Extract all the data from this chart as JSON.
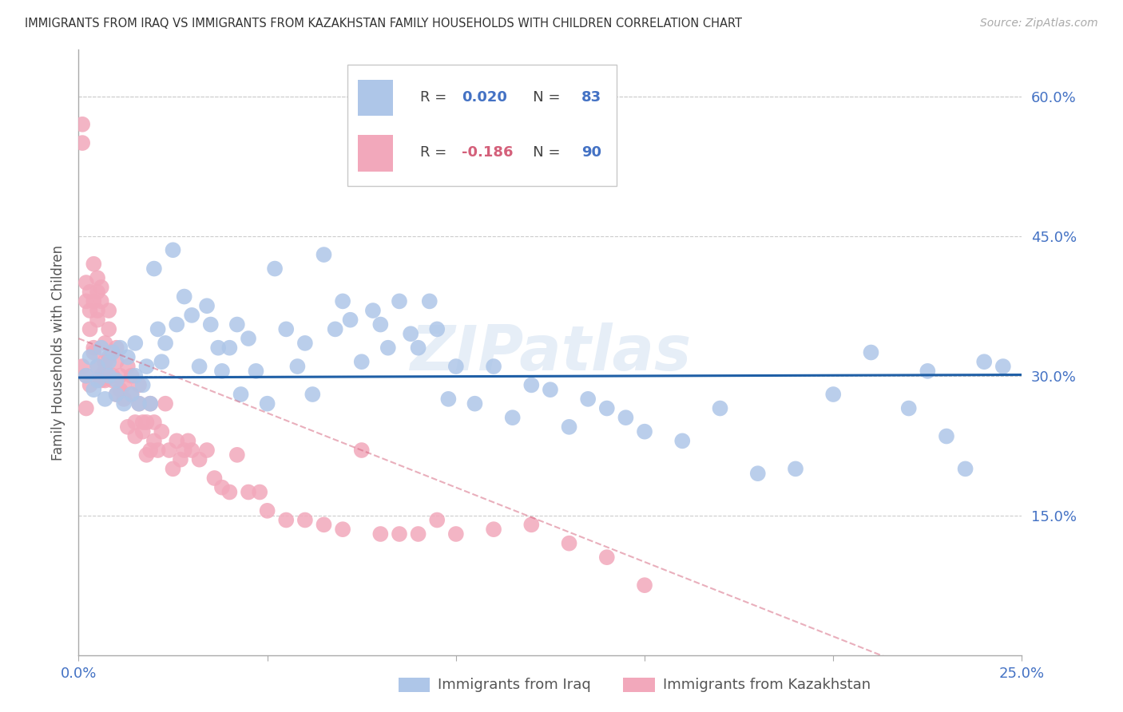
{
  "title": "IMMIGRANTS FROM IRAQ VS IMMIGRANTS FROM KAZAKHSTAN FAMILY HOUSEHOLDS WITH CHILDREN CORRELATION CHART",
  "source": "Source: ZipAtlas.com",
  "xlabel_legend1": "Immigrants from Iraq",
  "xlabel_legend2": "Immigrants from Kazakhstan",
  "ylabel": "Family Households with Children",
  "iraq_R": 0.02,
  "iraq_N": 83,
  "kaz_R": -0.186,
  "kaz_N": 90,
  "xlim": [
    0.0,
    0.25
  ],
  "ylim": [
    0.0,
    0.65
  ],
  "yticks": [
    0.0,
    0.15,
    0.3,
    0.45,
    0.6
  ],
  "ytick_labels": [
    "",
    "15.0%",
    "30.0%",
    "45.0%",
    "60.0%"
  ],
  "xticks": [
    0.0,
    0.05,
    0.1,
    0.15,
    0.2,
    0.25
  ],
  "xtick_labels": [
    "0.0%",
    "",
    "",
    "",
    "",
    "25.0%"
  ],
  "color_iraq": "#aec6e8",
  "color_kaz": "#f2a8bb",
  "line_color_iraq": "#1f5fa6",
  "line_color_kaz": "#d4607a",
  "watermark": "ZIPatlas",
  "background_color": "#ffffff",
  "iraq_scatter_x": [
    0.002,
    0.003,
    0.004,
    0.005,
    0.005,
    0.006,
    0.007,
    0.008,
    0.008,
    0.009,
    0.01,
    0.01,
    0.011,
    0.012,
    0.013,
    0.014,
    0.015,
    0.015,
    0.016,
    0.017,
    0.018,
    0.019,
    0.02,
    0.021,
    0.022,
    0.023,
    0.025,
    0.026,
    0.028,
    0.03,
    0.032,
    0.034,
    0.035,
    0.037,
    0.038,
    0.04,
    0.042,
    0.043,
    0.045,
    0.047,
    0.05,
    0.052,
    0.055,
    0.058,
    0.06,
    0.062,
    0.065,
    0.068,
    0.07,
    0.072,
    0.075,
    0.078,
    0.08,
    0.082,
    0.085,
    0.088,
    0.09,
    0.093,
    0.095,
    0.098,
    0.1,
    0.105,
    0.11,
    0.115,
    0.12,
    0.125,
    0.13,
    0.135,
    0.14,
    0.145,
    0.15,
    0.16,
    0.17,
    0.18,
    0.19,
    0.2,
    0.21,
    0.22,
    0.225,
    0.23,
    0.235,
    0.24,
    0.245
  ],
  "iraq_scatter_y": [
    0.3,
    0.32,
    0.285,
    0.31,
    0.295,
    0.33,
    0.275,
    0.315,
    0.3,
    0.325,
    0.28,
    0.295,
    0.33,
    0.27,
    0.32,
    0.28,
    0.3,
    0.335,
    0.27,
    0.29,
    0.31,
    0.27,
    0.415,
    0.35,
    0.315,
    0.335,
    0.435,
    0.355,
    0.385,
    0.365,
    0.31,
    0.375,
    0.355,
    0.33,
    0.305,
    0.33,
    0.355,
    0.28,
    0.34,
    0.305,
    0.27,
    0.415,
    0.35,
    0.31,
    0.335,
    0.28,
    0.43,
    0.35,
    0.38,
    0.36,
    0.315,
    0.37,
    0.355,
    0.33,
    0.38,
    0.345,
    0.33,
    0.38,
    0.35,
    0.275,
    0.31,
    0.27,
    0.31,
    0.255,
    0.29,
    0.285,
    0.245,
    0.275,
    0.265,
    0.255,
    0.24,
    0.23,
    0.265,
    0.195,
    0.2,
    0.28,
    0.325,
    0.265,
    0.305,
    0.235,
    0.2,
    0.315,
    0.31
  ],
  "kaz_scatter_x": [
    0.001,
    0.001,
    0.002,
    0.002,
    0.002,
    0.003,
    0.003,
    0.003,
    0.004,
    0.004,
    0.004,
    0.005,
    0.005,
    0.005,
    0.005,
    0.006,
    0.006,
    0.006,
    0.007,
    0.007,
    0.007,
    0.008,
    0.008,
    0.008,
    0.009,
    0.009,
    0.01,
    0.01,
    0.01,
    0.011,
    0.011,
    0.012,
    0.012,
    0.013,
    0.013,
    0.014,
    0.014,
    0.015,
    0.015,
    0.016,
    0.016,
    0.017,
    0.017,
    0.018,
    0.018,
    0.019,
    0.019,
    0.02,
    0.02,
    0.021,
    0.022,
    0.023,
    0.024,
    0.025,
    0.026,
    0.027,
    0.028,
    0.029,
    0.03,
    0.032,
    0.034,
    0.036,
    0.038,
    0.04,
    0.042,
    0.045,
    0.048,
    0.05,
    0.055,
    0.06,
    0.065,
    0.07,
    0.075,
    0.08,
    0.085,
    0.09,
    0.095,
    0.1,
    0.11,
    0.12,
    0.13,
    0.14,
    0.15,
    0.001,
    0.002,
    0.003,
    0.004,
    0.005,
    0.006,
    0.007
  ],
  "kaz_scatter_y": [
    0.55,
    0.57,
    0.3,
    0.38,
    0.4,
    0.35,
    0.39,
    0.37,
    0.42,
    0.38,
    0.33,
    0.39,
    0.405,
    0.37,
    0.36,
    0.395,
    0.38,
    0.3,
    0.335,
    0.315,
    0.295,
    0.35,
    0.32,
    0.37,
    0.295,
    0.3,
    0.28,
    0.33,
    0.315,
    0.3,
    0.285,
    0.275,
    0.29,
    0.31,
    0.245,
    0.28,
    0.3,
    0.25,
    0.235,
    0.27,
    0.29,
    0.25,
    0.24,
    0.215,
    0.25,
    0.22,
    0.27,
    0.23,
    0.25,
    0.22,
    0.24,
    0.27,
    0.22,
    0.2,
    0.23,
    0.21,
    0.22,
    0.23,
    0.22,
    0.21,
    0.22,
    0.19,
    0.18,
    0.175,
    0.215,
    0.175,
    0.175,
    0.155,
    0.145,
    0.145,
    0.14,
    0.135,
    0.22,
    0.13,
    0.13,
    0.13,
    0.145,
    0.13,
    0.135,
    0.14,
    0.12,
    0.105,
    0.075,
    0.31,
    0.265,
    0.29,
    0.325,
    0.31,
    0.295,
    0.305
  ]
}
